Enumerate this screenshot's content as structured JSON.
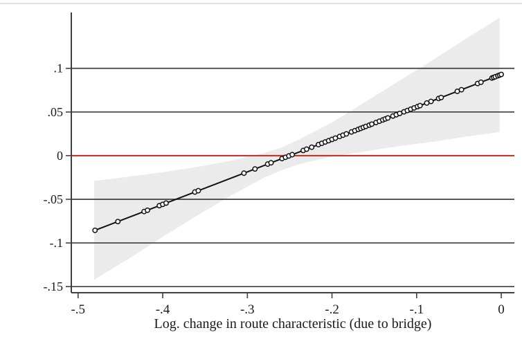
{
  "figure": {
    "background": "#ffffff",
    "top_edge_color": "#d9d9d9"
  },
  "chart_data": {
    "type": "scatter",
    "title": "",
    "xlabel": "Log. change in route characteristic (due to bridge)",
    "ylabel": "",
    "xlim": [
      -0.508,
      0.0155
    ],
    "ylim": [
      -0.157,
      0.164
    ],
    "grid": true,
    "legend": "none",
    "x_ticks": {
      "values": [
        -0.5,
        -0.4,
        -0.3,
        -0.2,
        -0.1,
        0
      ],
      "labels": [
        "-.5",
        "-.4",
        "-.3",
        "-.2",
        "-.1",
        "0"
      ]
    },
    "y_ticks": {
      "values": [
        0.1,
        0.05,
        0,
        -0.05,
        -0.1,
        -0.15
      ],
      "labels": [
        ".1",
        ".05",
        "0",
        "-.05",
        "-.1",
        "-.15"
      ]
    },
    "colors": {
      "grid": "#3f3f3f",
      "axis": "#3f3f3f",
      "zero_line": "#c43528",
      "fit_line": "#111111",
      "marker_stroke": "#111111",
      "marker_fill": "#ffffff",
      "band": "#ebebeb",
      "text": "#1a1a1a"
    },
    "zero_line_y": 0,
    "fit_line": {
      "slope": 0.372,
      "intercept": 0.093,
      "x_start": -0.48,
      "x_end": 0
    },
    "points_y_rule": "y = intercept + slope * x (markers lie on the fitted line)",
    "points_x": [
      -0.48,
      -0.453,
      -0.422,
      -0.418,
      -0.404,
      -0.4,
      -0.396,
      -0.362,
      -0.358,
      -0.304,
      -0.291,
      -0.276,
      -0.272,
      -0.259,
      -0.255,
      -0.251,
      -0.247,
      -0.234,
      -0.23,
      -0.224,
      -0.216,
      -0.212,
      -0.208,
      -0.204,
      -0.2,
      -0.196,
      -0.191,
      -0.187,
      -0.183,
      -0.177,
      -0.173,
      -0.169,
      -0.166,
      -0.163,
      -0.16,
      -0.156,
      -0.153,
      -0.148,
      -0.144,
      -0.14,
      -0.137,
      -0.134,
      -0.128,
      -0.124,
      -0.12,
      -0.115,
      -0.111,
      -0.107,
      -0.103,
      -0.099,
      -0.096,
      -0.088,
      -0.083,
      -0.074,
      -0.071,
      -0.052,
      -0.047,
      -0.028,
      -0.024,
      -0.011,
      -0.009,
      -0.007,
      -0.004,
      -0.002,
      0.0
    ],
    "confidence_band": {
      "x": [
        -0.481,
        -0.44,
        -0.4,
        -0.36,
        -0.32,
        -0.28,
        -0.26,
        -0.24,
        -0.2,
        -0.16,
        -0.12,
        -0.08,
        -0.04,
        -0.002
      ],
      "upper": [
        -0.029,
        -0.024,
        -0.019,
        -0.013,
        -0.006,
        0.003,
        0.009,
        0.018,
        0.038,
        0.062,
        0.086,
        0.11,
        0.135,
        0.158
      ],
      "lower": [
        -0.142,
        -0.118,
        -0.093,
        -0.069,
        -0.046,
        -0.025,
        -0.017,
        -0.01,
        -0.001,
        0.005,
        0.011,
        0.016,
        0.022,
        0.027
      ]
    }
  }
}
